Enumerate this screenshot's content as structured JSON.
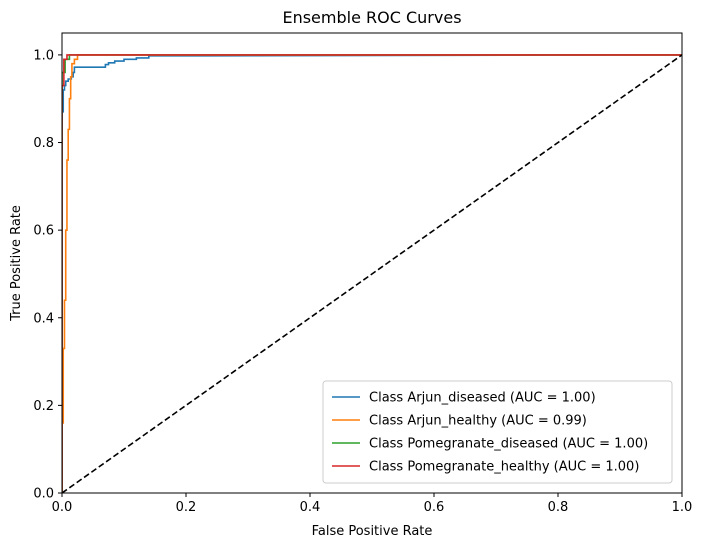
{
  "chart_data": {
    "type": "line",
    "title": "Ensemble ROC Curves",
    "xlabel": "False Positive Rate",
    "ylabel": "True Positive Rate",
    "xlim": [
      0.0,
      1.0
    ],
    "ylim": [
      0.0,
      1.05
    ],
    "xticks": [
      0.0,
      0.2,
      0.4,
      0.6,
      0.8,
      1.0
    ],
    "yticks": [
      0.0,
      0.2,
      0.4,
      0.6,
      0.8,
      1.0
    ],
    "xtick_labels": [
      "0.0",
      "0.2",
      "0.4",
      "0.6",
      "0.8",
      "1.0"
    ],
    "ytick_labels": [
      "0.0",
      "0.2",
      "0.4",
      "0.6",
      "0.8",
      "1.0"
    ],
    "grid": false,
    "legend_position": "lower-right",
    "series": [
      {
        "name": "Class Arjun_diseased (AUC = 1.00)",
        "color": "#1f77b4",
        "x": [
          0.0,
          0.0,
          0.002,
          0.002,
          0.004,
          0.004,
          0.006,
          0.006,
          0.01,
          0.01,
          0.015,
          0.015,
          0.018,
          0.018,
          0.02,
          0.02,
          0.04,
          0.04,
          0.07,
          0.07,
          0.075,
          0.075,
          0.085,
          0.085,
          0.1,
          0.1,
          0.12,
          0.12,
          0.14,
          0.14,
          0.23,
          1.0
        ],
        "y": [
          0.0,
          0.87,
          0.87,
          0.92,
          0.92,
          0.93,
          0.93,
          0.94,
          0.94,
          0.945,
          0.945,
          0.95,
          0.95,
          0.96,
          0.96,
          0.972,
          0.972,
          0.972,
          0.972,
          0.978,
          0.978,
          0.982,
          0.982,
          0.986,
          0.986,
          0.99,
          0.99,
          0.993,
          0.993,
          0.998,
          0.998,
          1.0
        ]
      },
      {
        "name": "Class Arjun_healthy (AUC = 0.99)",
        "color": "#ff7f0e",
        "x": [
          0.0,
          0.0,
          0.002,
          0.002,
          0.004,
          0.004,
          0.006,
          0.006,
          0.008,
          0.008,
          0.01,
          0.01,
          0.012,
          0.012,
          0.014,
          0.014,
          0.016,
          0.016,
          0.02,
          0.02,
          0.025,
          0.025,
          1.0
        ],
        "y": [
          0.0,
          0.16,
          0.16,
          0.33,
          0.33,
          0.44,
          0.44,
          0.6,
          0.6,
          0.76,
          0.76,
          0.83,
          0.83,
          0.9,
          0.9,
          0.95,
          0.95,
          0.98,
          0.98,
          0.99,
          0.99,
          1.0,
          1.0
        ]
      },
      {
        "name": "Class Pomegranate_diseased (AUC = 1.00)",
        "color": "#2ca02c",
        "x": [
          0.0,
          0.0,
          0.005,
          0.005,
          0.012,
          0.012,
          1.0
        ],
        "y": [
          0.0,
          0.96,
          0.96,
          0.99,
          0.99,
          1.0,
          1.0
        ]
      },
      {
        "name": "Class Pomegranate_healthy (AUC = 1.00)",
        "color": "#d62728",
        "x": [
          0.0,
          0.0,
          0.003,
          0.003,
          0.008,
          0.008,
          1.0
        ],
        "y": [
          0.0,
          0.93,
          0.93,
          0.99,
          0.99,
          1.0,
          1.0
        ]
      }
    ],
    "reference_line": {
      "x": [
        0.0,
        1.0
      ],
      "y": [
        0.0,
        1.0
      ],
      "color": "#000000",
      "style": "dashed"
    }
  }
}
